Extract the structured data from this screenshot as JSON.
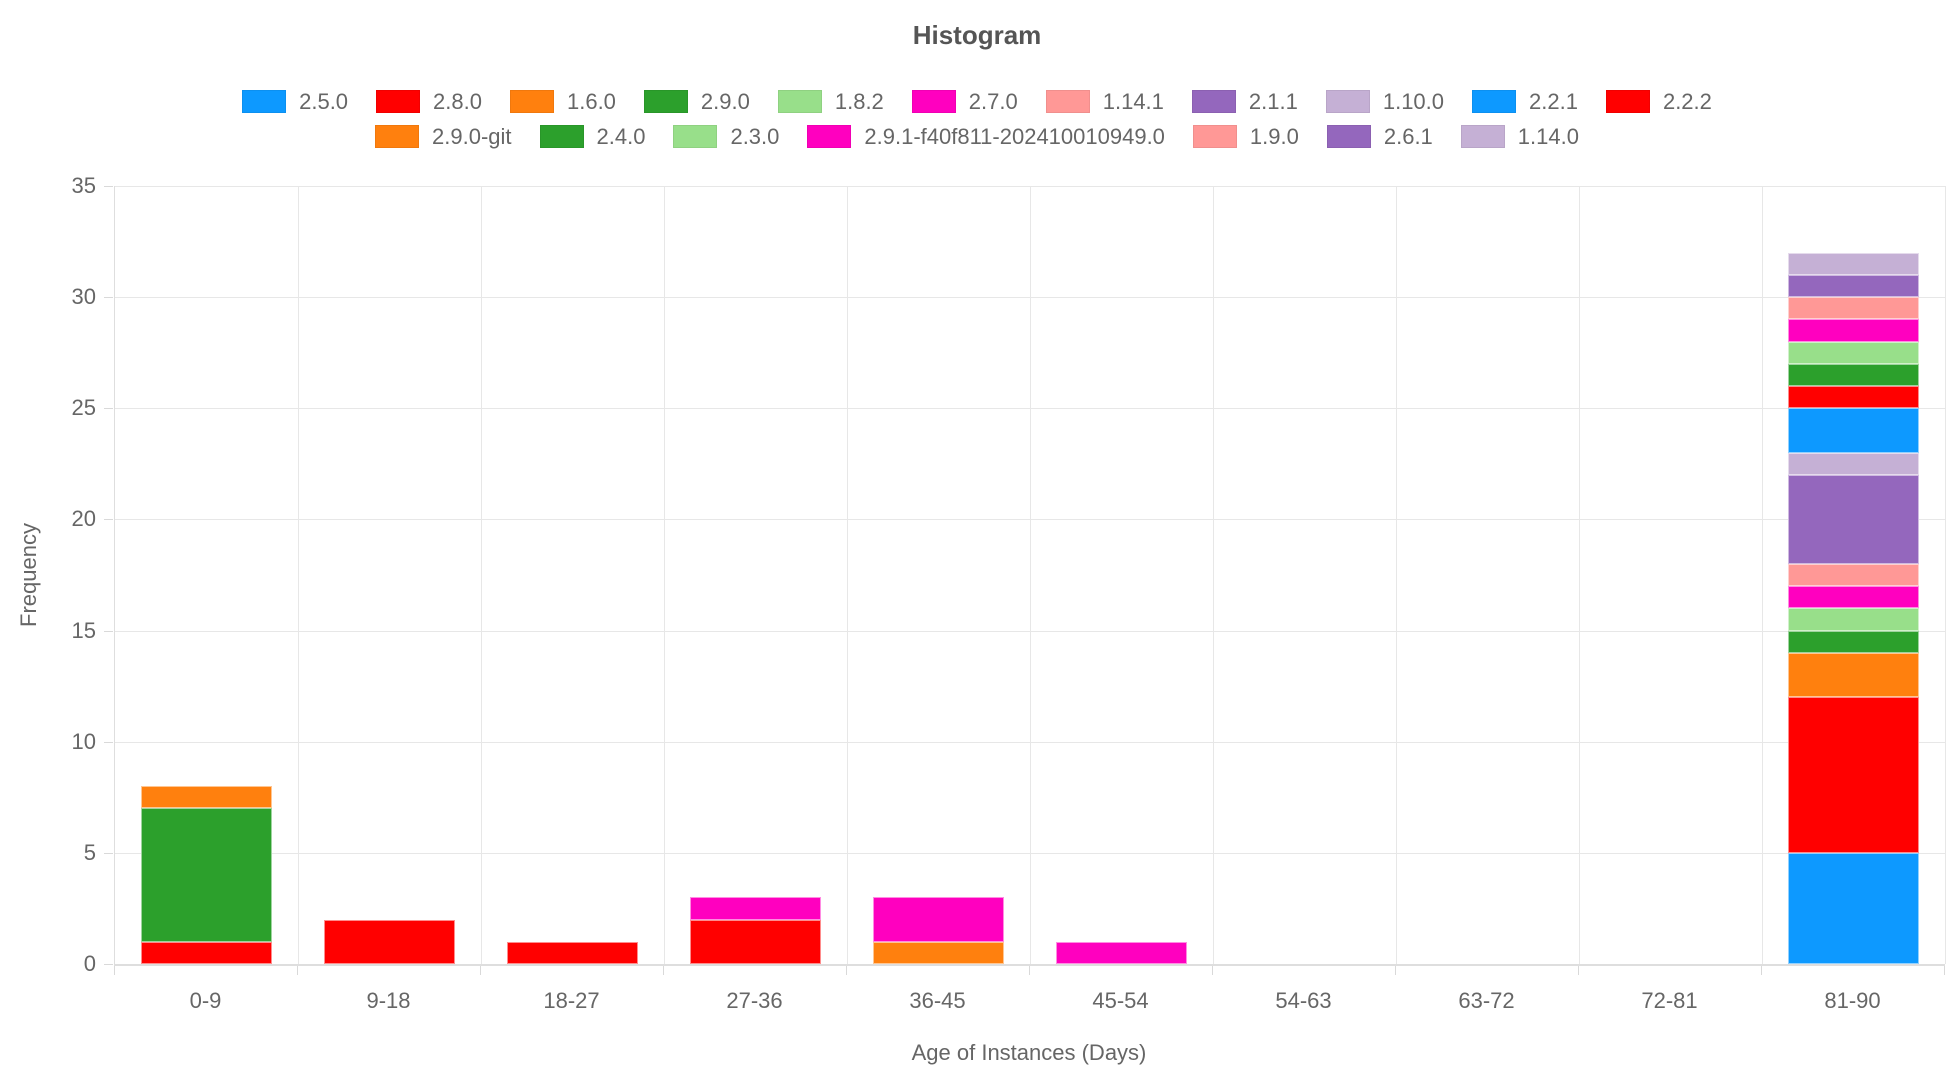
{
  "title": "Histogram",
  "palette": {
    "blue": "#0D99FF",
    "red": "#FF0000",
    "orange": "#FF800E",
    "green": "#2CA02C",
    "lightgreen": "#98DF8A",
    "magenta": "#FF00BF",
    "salmon": "#FF9896",
    "purple": "#9467BD",
    "lightpurple": "#C5B0D5"
  },
  "legend": {
    "row_split": 11
  },
  "chart_data": {
    "type": "bar",
    "stacked": true,
    "title": "Histogram",
    "xlabel": "Age of Instances (Days)",
    "ylabel": "Frequency",
    "ylim": [
      0,
      35
    ],
    "ytick_step": 5,
    "yticks": [
      0,
      5,
      10,
      15,
      20,
      25,
      30,
      35
    ],
    "grid": true,
    "legend_position": "top",
    "categories": [
      "0-9",
      "9-18",
      "18-27",
      "27-36",
      "36-45",
      "45-54",
      "54-63",
      "63-72",
      "72-81",
      "81-90"
    ],
    "series": [
      {
        "name": "2.5.0",
        "color": "blue",
        "values": [
          0,
          0,
          0,
          0,
          0,
          0,
          0,
          0,
          0,
          5
        ]
      },
      {
        "name": "2.8.0",
        "color": "red",
        "values": [
          1,
          2,
          1,
          2,
          0,
          0,
          0,
          0,
          0,
          7
        ]
      },
      {
        "name": "1.6.0",
        "color": "orange",
        "values": [
          0,
          0,
          0,
          0,
          1,
          0,
          0,
          0,
          0,
          2
        ]
      },
      {
        "name": "2.9.0",
        "color": "green",
        "values": [
          6,
          0,
          0,
          0,
          0,
          0,
          0,
          0,
          0,
          1
        ]
      },
      {
        "name": "1.8.2",
        "color": "lightgreen",
        "values": [
          0,
          0,
          0,
          0,
          0,
          0,
          0,
          0,
          0,
          1
        ]
      },
      {
        "name": "2.7.0",
        "color": "magenta",
        "values": [
          0,
          0,
          0,
          1,
          2,
          1,
          0,
          0,
          0,
          1
        ]
      },
      {
        "name": "1.14.1",
        "color": "salmon",
        "values": [
          0,
          0,
          0,
          0,
          0,
          0,
          0,
          0,
          0,
          1
        ]
      },
      {
        "name": "2.1.1",
        "color": "purple",
        "values": [
          0,
          0,
          0,
          0,
          0,
          0,
          0,
          0,
          0,
          4
        ]
      },
      {
        "name": "1.10.0",
        "color": "lightpurple",
        "values": [
          0,
          0,
          0,
          0,
          0,
          0,
          0,
          0,
          0,
          1
        ]
      },
      {
        "name": "2.2.1",
        "color": "blue",
        "values": [
          0,
          0,
          0,
          0,
          0,
          0,
          0,
          0,
          0,
          2
        ]
      },
      {
        "name": "2.2.2",
        "color": "red",
        "values": [
          0,
          0,
          0,
          0,
          0,
          0,
          0,
          0,
          0,
          1
        ]
      },
      {
        "name": "2.9.0-git",
        "color": "orange",
        "values": [
          1,
          0,
          0,
          0,
          0,
          0,
          0,
          0,
          0,
          0
        ]
      },
      {
        "name": "2.4.0",
        "color": "green",
        "values": [
          0,
          0,
          0,
          0,
          0,
          0,
          0,
          0,
          0,
          1
        ]
      },
      {
        "name": "2.3.0",
        "color": "lightgreen",
        "values": [
          0,
          0,
          0,
          0,
          0,
          0,
          0,
          0,
          0,
          1
        ]
      },
      {
        "name": "2.9.1-f40f811-202410010949.0",
        "color": "magenta",
        "values": [
          0,
          0,
          0,
          0,
          0,
          0,
          0,
          0,
          0,
          1
        ]
      },
      {
        "name": "1.9.0",
        "color": "salmon",
        "values": [
          0,
          0,
          0,
          0,
          0,
          0,
          0,
          0,
          0,
          1
        ]
      },
      {
        "name": "2.6.1",
        "color": "purple",
        "values": [
          0,
          0,
          0,
          0,
          0,
          0,
          0,
          0,
          0,
          1
        ]
      },
      {
        "name": "1.14.0",
        "color": "lightpurple",
        "values": [
          0,
          0,
          0,
          0,
          0,
          0,
          0,
          0,
          0,
          1
        ]
      }
    ]
  }
}
